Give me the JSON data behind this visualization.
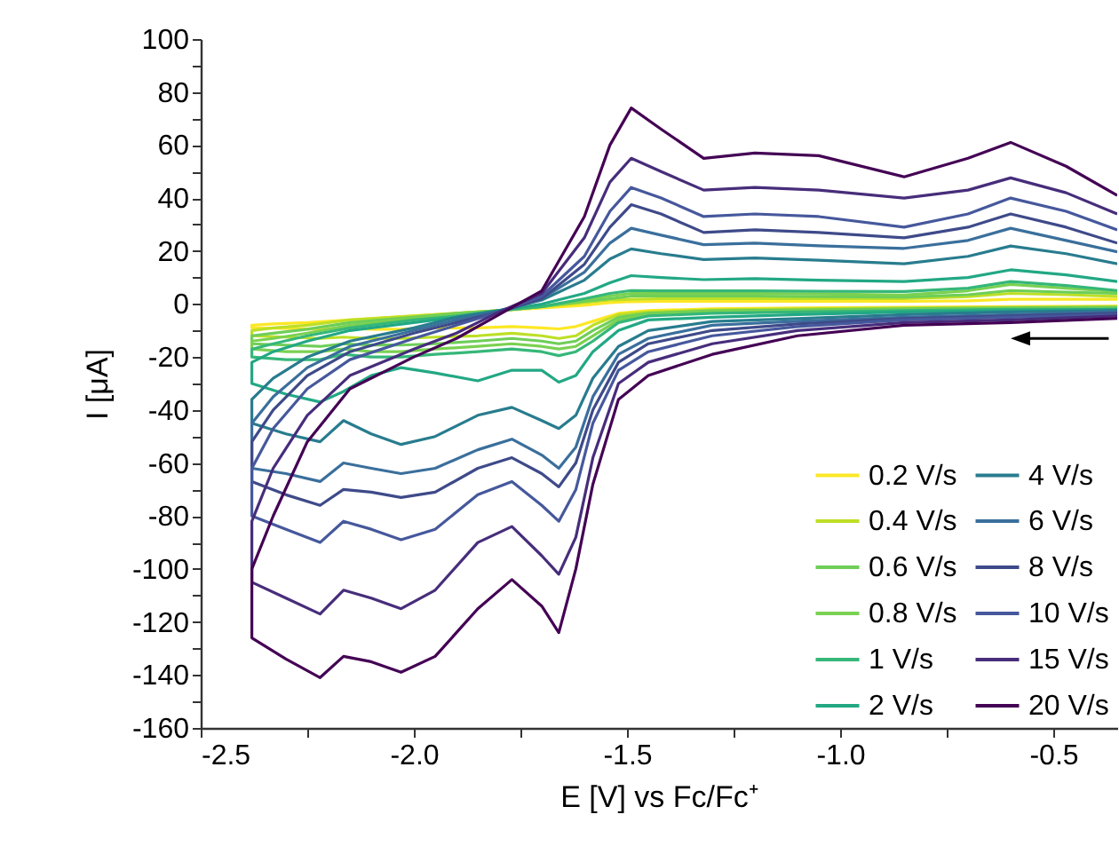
{
  "chart_data": {
    "type": "line",
    "xlabel": "E [V] vs Fc/Fc⁺",
    "ylabel": "I [μA]",
    "x": [
      -0.35,
      -0.6,
      -0.85,
      -1.1,
      -1.3,
      -1.45,
      -1.52,
      -1.58,
      -1.62,
      -1.66,
      -1.7,
      -1.77,
      -1.85,
      -1.95,
      -2.03,
      -2.1,
      -2.165,
      -2.22,
      -2.3,
      -2.38,
      -2.38,
      -2.33,
      -2.25,
      -2.15,
      -2.0,
      -1.9,
      -1.8,
      -1.7,
      -1.6,
      -1.54,
      -1.49,
      -1.42,
      -1.32,
      -1.2,
      -1.05,
      -0.85,
      -0.7,
      -0.6,
      -0.47,
      -0.35
    ],
    "xlim": [
      -2.5,
      -0.35
    ],
    "ylim": [
      -160,
      100
    ],
    "xticks": [
      {
        "value": -2.5,
        "label": "-2.5"
      },
      {
        "value": -2.25,
        "label": null
      },
      {
        "value": -2,
        "label": "-2.0"
      },
      {
        "value": -1.75,
        "label": null
      },
      {
        "value": -1.5,
        "label": "-1.5"
      },
      {
        "value": -1.25,
        "label": null
      },
      {
        "value": -1,
        "label": "-1.0"
      },
      {
        "value": -0.75,
        "label": null
      },
      {
        "value": -0.5,
        "label": "-0.5"
      }
    ],
    "yticks": [
      -160,
      {
        "value": -150,
        "label": null
      },
      -140,
      {
        "value": -130,
        "label": null
      },
      -120,
      {
        "value": -110,
        "label": null
      },
      -100,
      {
        "value": -90,
        "label": null
      },
      -80,
      {
        "value": -70,
        "label": null
      },
      -60,
      {
        "value": -50,
        "label": null
      },
      -40,
      {
        "value": -30,
        "label": null
      },
      -20,
      {
        "value": -10,
        "label": null
      },
      0,
      {
        "value": 10,
        "label": null
      },
      20,
      {
        "value": 30,
        "label": null
      },
      40,
      {
        "value": 50,
        "label": null
      },
      60,
      {
        "value": 70,
        "label": null
      },
      80,
      {
        "value": 90,
        "label": null
      },
      100
    ],
    "legend": "bottom right",
    "series": [
      {
        "name": "0.2 V/s",
        "color": "#fde725",
        "values": [
          -0.8,
          -1,
          -1.2,
          -1.5,
          -1.8,
          -2.5,
          -3.5,
          -6.5,
          -8.5,
          -9.4,
          -9,
          -8.5,
          -9,
          -9,
          -9.5,
          -9.5,
          -9,
          -9.5,
          -9.2,
          -9,
          -8,
          -7.5,
          -7,
          -6,
          -4.5,
          -3.5,
          -2.5,
          -1.5,
          -0.5,
          0.5,
          0.9,
          1,
          1,
          1,
          1,
          1,
          1.2,
          1.8,
          1.8,
          1.8
        ]
      },
      {
        "name": "0.4 V/s",
        "color": "#bddf26",
        "values": [
          -1,
          -1.2,
          -1.5,
          -1.8,
          -2.2,
          -3,
          -4,
          -8,
          -12,
          -13,
          -12,
          -11,
          -12,
          -12.5,
          -13,
          -13,
          -12.5,
          -13,
          -12.5,
          -12,
          -10,
          -9,
          -8,
          -6,
          -4.5,
          -3.5,
          -2.5,
          -1,
          0.5,
          1.5,
          1.8,
          2,
          2,
          2,
          2,
          2,
          2.8,
          4,
          3.5,
          2.9
        ]
      },
      {
        "name": "0.6 V/s",
        "color": "#6ece58",
        "values": [
          -1.2,
          -1.5,
          -1.8,
          -2.2,
          -2.6,
          -3.5,
          -5,
          -10,
          -14,
          -15,
          -14,
          -13,
          -14,
          -15,
          -15.5,
          -15.5,
          -15,
          -16,
          -15.5,
          -15,
          -12,
          -11,
          -9.5,
          -7,
          -5,
          -3.5,
          -2.5,
          -1,
          1,
          2,
          3,
          3,
          3,
          3,
          2.8,
          2.6,
          3.5,
          5.1,
          4.5,
          4
        ]
      },
      {
        "name": "0.8 V/s",
        "color": "#7ad151",
        "values": [
          -1.5,
          -1.8,
          -2.2,
          -2.6,
          -3,
          -4,
          -6,
          -12,
          -16,
          -17,
          -16,
          -15,
          -16,
          -17,
          -18,
          -18,
          -17,
          -18,
          -18,
          -17,
          -14,
          -13,
          -11,
          -8,
          -5.5,
          -4,
          -2.5,
          -1,
          1.5,
          3,
          4,
          4,
          4,
          4,
          3.8,
          3.4,
          5,
          7.4,
          6,
          4.7
        ]
      },
      {
        "name": "1 V/s",
        "color": "#35b779",
        "values": [
          -2,
          -2,
          -2.5,
          -3,
          -3.5,
          -4.5,
          -7,
          -14,
          -18,
          -19.5,
          -18,
          -17,
          -18,
          -19,
          -20,
          -20,
          -19,
          -21,
          -21,
          -20,
          -17,
          -15,
          -12,
          -9,
          -6,
          -4.5,
          -2.5,
          -1,
          2,
          4,
          5.1,
          5,
          5,
          5,
          4.8,
          4.7,
          6,
          8.5,
          7,
          5.1
        ]
      },
      {
        "name": "2 V/s",
        "color": "#22a884",
        "values": [
          -2,
          -2.5,
          -3,
          -4,
          -5,
          -6,
          -10,
          -18,
          -27,
          -29.5,
          -25,
          -25,
          -29,
          -26,
          -24,
          -27,
          -33,
          -37,
          -34,
          -30,
          -22,
          -18,
          -14,
          -10,
          -7,
          -5,
          -2.5,
          0,
          4,
          8,
          10.7,
          10,
          9.2,
          9.6,
          9,
          8.5,
          10,
          12.9,
          11,
          8.5
        ]
      },
      {
        "name": "4 V/s",
        "color": "#287c8e",
        "values": [
          -2.5,
          -3,
          -4,
          -5.5,
          -6.6,
          -10,
          -16,
          -28,
          -42,
          -47,
          -44,
          -39,
          -42,
          -50,
          -53,
          -49,
          -44,
          -52,
          -49,
          -45,
          -36,
          -28,
          -20,
          -14,
          -9,
          -5,
          -2.5,
          1.5,
          9,
          17,
          20.8,
          19,
          16.8,
          17.4,
          16.5,
          15.2,
          18,
          21.9,
          19,
          15.2
        ]
      },
      {
        "name": "6 V/s",
        "color": "#3a6f9c",
        "values": [
          -3,
          -4,
          -5,
          -6.5,
          -8,
          -13,
          -19,
          -35,
          -54,
          -62,
          -57,
          -51,
          -55,
          -62,
          -64,
          -62,
          -60,
          -67,
          -64,
          -62,
          -45,
          -35,
          -24,
          -16,
          -10,
          -6,
          -3,
          2,
          12,
          23,
          28.6,
          26,
          22.4,
          23,
          22,
          21,
          24,
          28.6,
          24,
          19.7
        ]
      },
      {
        "name": "8 V/s",
        "color": "#3e4a89",
        "values": [
          -3.5,
          -4.5,
          -5.5,
          -7.5,
          -10,
          -15,
          -22,
          -40,
          -60,
          -69,
          -64,
          -58,
          -62,
          -71,
          -73,
          -71,
          -70,
          -76,
          -72,
          -67,
          -52,
          -40,
          -27,
          -18,
          -11,
          -7,
          -3,
          2,
          15,
          29,
          37.5,
          34,
          27,
          28,
          27,
          25,
          29,
          34,
          29,
          23
        ]
      },
      {
        "name": "10 V/s",
        "color": "#46589c",
        "values": [
          -4,
          -5,
          -6,
          -8.5,
          -12,
          -18,
          -25,
          -45,
          -70,
          -82,
          -76,
          -67,
          -72,
          -85,
          -89,
          -85,
          -82,
          -90,
          -85,
          -80,
          -62,
          -47,
          -32,
          -21,
          -13,
          -8,
          -3,
          3,
          18,
          35,
          44,
          40,
          33,
          34,
          33,
          29,
          34,
          40,
          35,
          28
        ]
      },
      {
        "name": "15 V/s",
        "color": "#472d7b",
        "values": [
          -4.5,
          -6,
          -7,
          -10,
          -15,
          -22,
          -30,
          -58,
          -88,
          -102,
          -95,
          -84,
          -90,
          -108,
          -115,
          -111,
          -108,
          -117,
          -111,
          -105,
          -82,
          -62,
          -42,
          -27,
          -17,
          -11,
          -3,
          4,
          25,
          46,
          55,
          50,
          43,
          44,
          43,
          40,
          43,
          47.6,
          42,
          34
        ]
      },
      {
        "name": "20 V/s",
        "color": "#440154",
        "values": [
          -5.4,
          -7,
          -8,
          -12,
          -19,
          -27,
          -36,
          -68,
          -100,
          -124,
          -114,
          -104,
          -115,
          -133,
          -139,
          -135,
          -133,
          -141,
          -134,
          -126,
          -100,
          -80,
          -52,
          -32,
          -20,
          -13,
          -4,
          5,
          33,
          60,
          74,
          66,
          55,
          57,
          56,
          48,
          55,
          61,
          52,
          41
        ]
      }
    ]
  }
}
